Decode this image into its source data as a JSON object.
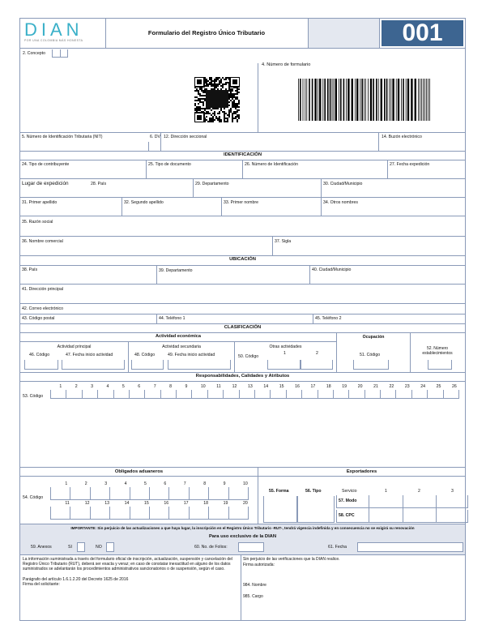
{
  "header": {
    "logo_text": "DIAN",
    "logo_tagline": "POR UNA COLOMBIA MÁS HONESTA",
    "title": "Formulario del Registro Único Tributario",
    "form_number": "001",
    "brand_color": "#3d6591",
    "logo_color": "#3ab0c8"
  },
  "top": {
    "concepto": "2. Concepto",
    "numero_formulario": "4. Número de formulario"
  },
  "row_nit": {
    "nit": "5. Número de Identificación Tributaria (NIT)",
    "dv": "6. DV",
    "direccion_seccional": "12. Dirección seccional",
    "buzon": "14. Buzón electrónico"
  },
  "identificacion": {
    "title": "IDENTIFICACIÓN",
    "tipo_contribuyente": "24. Tipo de contribuyente",
    "tipo_documento": "25. Tipo de documento",
    "numero_identificacion": "26. Número de Identificación",
    "fecha_expedicion": "27. Fecha expedición",
    "lugar_expedicion": "Lugar de expedición",
    "pais": "28. País",
    "departamento": "29. Departamento",
    "ciudad": "30. Ciudad/Municipio",
    "primer_apellido": "31. Primer apellido",
    "segundo_apellido": "32. Segundo apellido",
    "primer_nombre": "33. Primer nombre",
    "otros_nombres": "34. Otros nombres",
    "razon_social": "35. Razón social",
    "nombre_comercial": "36. Nombre comercial",
    "sigla": "37. Sigla"
  },
  "ubicacion": {
    "title": "UBICACIÓN",
    "pais": "38. País",
    "departamento": "39. Departamento",
    "ciudad": "40. Ciudad/Municipio",
    "direccion": "41. Dirección principal",
    "correo": "42. Correo electrónico",
    "codigo_postal": "43. Código postal",
    "telefono1": "44. Teléfono 1",
    "telefono2": "45. Teléfono 2"
  },
  "clasificacion": {
    "title": "CLASIFICACIÓN",
    "actividad_economica": "Actividad económica",
    "ocupacion": "Ocupación",
    "actividad_principal": "Actividad principal",
    "codigo46": "46. Código",
    "fecha47": "47. Fecha inicio actividad",
    "actividad_secundaria": "Actividad secundaria",
    "codigo48": "48. Código",
    "fecha49": "49. Fecha inicio actividad",
    "otras_actividades": "Otras actividades",
    "codigo50": "50. Código",
    "otras_1": "1",
    "otras_2": "2",
    "codigo51": "51. Código",
    "establecimientos": "52. Número establecimientos"
  },
  "responsabilidades": {
    "title": "Responsabilidades, Calidades y Atributos",
    "codigo": "53. Código",
    "numbers": [
      "1",
      "2",
      "3",
      "4",
      "5",
      "6",
      "7",
      "8",
      "9",
      "10",
      "11",
      "12",
      "13",
      "14",
      "15",
      "16",
      "17",
      "18",
      "19",
      "20",
      "21",
      "22",
      "23",
      "24",
      "25",
      "26"
    ]
  },
  "aduaneros": {
    "title": "Obligados aduaneros",
    "codigo": "54. Código",
    "row1": [
      "1",
      "2",
      "3",
      "4",
      "5",
      "6",
      "7",
      "8",
      "9",
      "10"
    ],
    "row2": [
      "11",
      "12",
      "13",
      "14",
      "15",
      "16",
      "17",
      "18",
      "19",
      "20"
    ]
  },
  "exportadores": {
    "title": "Exportadores",
    "forma": "55. Forma",
    "tipo": "56. Tipo",
    "servicio": "Servicio",
    "cols": [
      "1",
      "2",
      "3"
    ],
    "modo": "57. Modo",
    "cpc": "58. CPC"
  },
  "importante": "IMPORTANTE: Sin perjuicio de las actualizaciones a que haya lugar, la inscripción en el Registro Único Tributario -RUT-, tendrá vigencia indefinida y en consecuencia no se exigirá su renovación",
  "dian_uso": {
    "title": "Para uso exclusivo de la DIAN",
    "anexos": "59. Anexos",
    "si": "SI",
    "no": "NO",
    "folios": "60. No. de Folios:",
    "fecha": "61. Fecha"
  },
  "footer": {
    "left_text": "La información suministrada a través del formulario oficial de inscripción, actualización, suspensión y cancelación del Registro Único Tributario (RUT), deberá ser exacta y veraz; en caso de constatar inexactitud en alguno de los datos suministrados se adelantarán los procedimientos administrativos sancionatorios o de suspensión, según el caso.",
    "paragrafo": "Parágrafo del artículo 1.6.1.2.20 del Decreto 1625 de 2016",
    "firma_solicitante": "Firma del solicitante:",
    "right_text": "Sin perjuicio de las verificaciones que la DIAN realice.",
    "firma_autorizada": "Firma autorizada:",
    "nombre": "984. Nombre",
    "cargo": "985. Cargo"
  }
}
